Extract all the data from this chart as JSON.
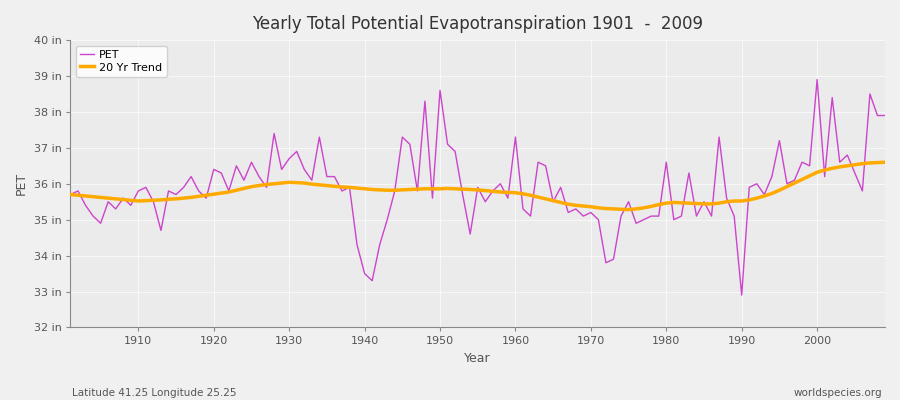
{
  "title": "Yearly Total Potential Evapotranspiration 1901  -  2009",
  "xlabel": "Year",
  "ylabel": "PET",
  "subtitle_left": "Latitude 41.25 Longitude 25.25",
  "subtitle_right": "worldspecies.org",
  "pet_color": "#cc44cc",
  "trend_color": "#ffaa00",
  "bg_color": "#f0f0f0",
  "plot_bg_color": "#ebebeb",
  "grid_color": "#ffffff",
  "ylim": [
    32,
    40
  ],
  "xlim": [
    1901,
    2009
  ],
  "yticks": [
    32,
    33,
    34,
    35,
    36,
    37,
    38,
    39,
    40
  ],
  "ytick_labels": [
    "32 in",
    "33 in",
    "34 in",
    "35 in",
    "36 in",
    "37 in",
    "38 in",
    "39 in",
    "40 in"
  ],
  "xticks": [
    1910,
    1920,
    1930,
    1940,
    1950,
    1960,
    1970,
    1980,
    1990,
    2000
  ],
  "years": [
    1901,
    1902,
    1903,
    1904,
    1905,
    1906,
    1907,
    1908,
    1909,
    1910,
    1911,
    1912,
    1913,
    1914,
    1915,
    1916,
    1917,
    1918,
    1919,
    1920,
    1921,
    1922,
    1923,
    1924,
    1925,
    1926,
    1927,
    1928,
    1929,
    1930,
    1931,
    1932,
    1933,
    1934,
    1935,
    1936,
    1937,
    1938,
    1939,
    1940,
    1941,
    1942,
    1943,
    1944,
    1945,
    1946,
    1947,
    1948,
    1949,
    1950,
    1951,
    1952,
    1953,
    1954,
    1955,
    1956,
    1957,
    1958,
    1959,
    1960,
    1961,
    1962,
    1963,
    1964,
    1965,
    1966,
    1967,
    1968,
    1969,
    1970,
    1971,
    1972,
    1973,
    1974,
    1975,
    1976,
    1977,
    1978,
    1979,
    1980,
    1981,
    1982,
    1983,
    1984,
    1985,
    1986,
    1987,
    1988,
    1989,
    1990,
    1991,
    1992,
    1993,
    1994,
    1995,
    1996,
    1997,
    1998,
    1999,
    2000,
    2001,
    2002,
    2003,
    2004,
    2005,
    2006,
    2007,
    2008,
    2009
  ],
  "pet": [
    35.7,
    35.8,
    35.4,
    35.1,
    34.9,
    35.5,
    35.3,
    35.6,
    35.4,
    35.8,
    35.9,
    35.5,
    34.7,
    35.8,
    35.7,
    35.9,
    36.2,
    35.8,
    35.6,
    36.4,
    36.3,
    35.8,
    36.5,
    36.1,
    36.6,
    36.2,
    35.9,
    37.4,
    36.4,
    36.7,
    36.9,
    36.4,
    36.1,
    37.3,
    36.2,
    36.2,
    35.8,
    35.9,
    34.3,
    33.5,
    33.3,
    34.3,
    35.0,
    35.8,
    37.3,
    37.1,
    35.8,
    38.3,
    35.6,
    38.6,
    37.1,
    36.9,
    35.7,
    34.6,
    35.9,
    35.5,
    35.8,
    36.0,
    35.6,
    37.3,
    35.3,
    35.1,
    36.6,
    36.5,
    35.5,
    35.9,
    35.2,
    35.3,
    35.1,
    35.2,
    35.0,
    33.8,
    33.9,
    35.1,
    35.5,
    34.9,
    35.0,
    35.1,
    35.1,
    36.6,
    35.0,
    35.1,
    36.3,
    35.1,
    35.5,
    35.1,
    37.3,
    35.6,
    35.1,
    32.9,
    35.9,
    36.0,
    35.7,
    36.2,
    37.2,
    36.0,
    36.1,
    36.6,
    36.5,
    38.9,
    36.2,
    38.4,
    36.6,
    36.8,
    36.3,
    35.8,
    38.5,
    37.9,
    37.9
  ],
  "trend": [
    35.7,
    35.68,
    35.66,
    35.64,
    35.62,
    35.6,
    35.58,
    35.56,
    35.54,
    35.52,
    35.53,
    35.54,
    35.55,
    35.57,
    35.58,
    35.6,
    35.62,
    35.65,
    35.68,
    35.71,
    35.74,
    35.77,
    35.82,
    35.87,
    35.92,
    35.95,
    35.98,
    36.0,
    36.02,
    36.04,
    36.03,
    36.02,
    35.99,
    35.97,
    35.95,
    35.93,
    35.91,
    35.9,
    35.88,
    35.86,
    35.84,
    35.83,
    35.82,
    35.82,
    35.83,
    35.84,
    35.85,
    35.86,
    35.86,
    35.86,
    35.87,
    35.86,
    35.85,
    35.84,
    35.83,
    35.81,
    35.79,
    35.77,
    35.76,
    35.75,
    35.72,
    35.68,
    35.63,
    35.58,
    35.53,
    35.48,
    35.43,
    35.4,
    35.38,
    35.36,
    35.33,
    35.31,
    35.3,
    35.29,
    35.28,
    35.3,
    35.33,
    35.37,
    35.42,
    35.46,
    35.48,
    35.47,
    35.46,
    35.45,
    35.44,
    35.44,
    35.46,
    35.5,
    35.52,
    35.52,
    35.55,
    35.6,
    35.66,
    35.73,
    35.82,
    35.92,
    36.02,
    36.12,
    36.22,
    36.32,
    36.38,
    36.43,
    36.47,
    36.5,
    36.53,
    36.56,
    36.58,
    36.59,
    36.6
  ]
}
